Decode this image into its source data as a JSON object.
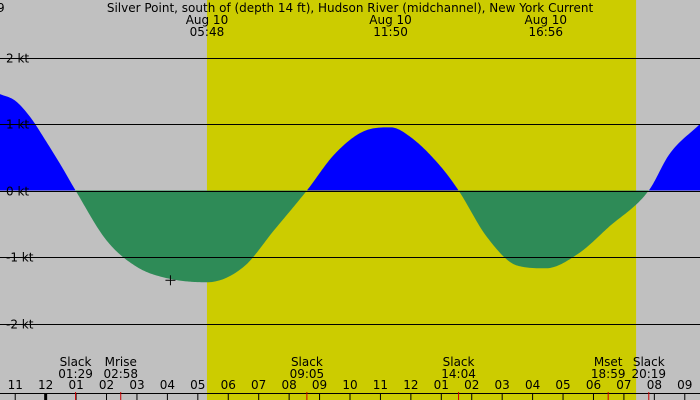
{
  "chart_data": {
    "type": "area",
    "title": "Silver Point, south of (depth 14 ft), Hudson River (midchannel), New York Current",
    "title_prefix": "9",
    "y_tick_labels": [
      "2 kt",
      "1 kt",
      "0 kt",
      "-1 kt",
      "-2 kt"
    ],
    "ylim": [
      -2.5,
      2.5
    ],
    "y_ticks": [
      2,
      1,
      0,
      -1,
      -2
    ],
    "xlim_hours": [
      -1.0,
      22.0
    ],
    "x_tick_labels": [
      "11",
      "12",
      "01",
      "02",
      "03",
      "04",
      "05",
      "06",
      "07",
      "08",
      "09",
      "10",
      "11",
      "12",
      "01",
      "02",
      "03",
      "04",
      "05",
      "06",
      "07",
      "08",
      "09"
    ],
    "daylight": {
      "start": 5.8,
      "end": 19.9
    },
    "events_top": [
      {
        "h": 5.8,
        "date": "Aug 10",
        "time": "05:48"
      },
      {
        "h": 11.833,
        "date": "Aug 10",
        "time": "11:50"
      },
      {
        "h": 16.933,
        "date": "Aug 10",
        "time": "16:56"
      }
    ],
    "events_bottom": [
      {
        "h": 1.483,
        "name": "Slack",
        "time": "01:29"
      },
      {
        "h": 2.967,
        "name": "Mrise",
        "time": "02:58"
      },
      {
        "h": 9.083,
        "name": "Slack",
        "time": "09:05"
      },
      {
        "h": 14.067,
        "name": "Slack",
        "time": "14:04"
      },
      {
        "h": 18.983,
        "name": "Mset",
        "time": "18:59"
      },
      {
        "h": 20.317,
        "name": "Slack",
        "time": "20:19"
      }
    ],
    "series": [
      {
        "x": [
          -1.0,
          -0.5,
          0.0,
          0.5,
          1.0,
          1.483,
          2.5,
          3.5,
          4.5,
          5.8,
          7.0,
          8.0,
          9.083,
          10.0,
          11.0,
          11.833,
          12.5,
          13.5,
          14.067,
          15.0,
          16.0,
          16.933,
          18.0,
          19.0,
          20.317,
          21.0,
          22.0
        ],
        "values": [
          1.45,
          1.35,
          1.1,
          0.75,
          0.38,
          0.0,
          -0.75,
          -1.15,
          -1.32,
          -1.38,
          -1.15,
          -0.6,
          0.0,
          0.55,
          0.9,
          0.95,
          0.8,
          0.35,
          0.0,
          -0.7,
          -1.13,
          -1.17,
          -0.95,
          -0.55,
          0.0,
          0.55,
          1.0
        ]
      }
    ],
    "flood_color": "#0000ff",
    "ebb_color": "#2e8b57",
    "night_color": "#c0c0c0",
    "day_color": "#cccc00",
    "marker": {
      "h": 4.6,
      "v": -1.35
    }
  }
}
